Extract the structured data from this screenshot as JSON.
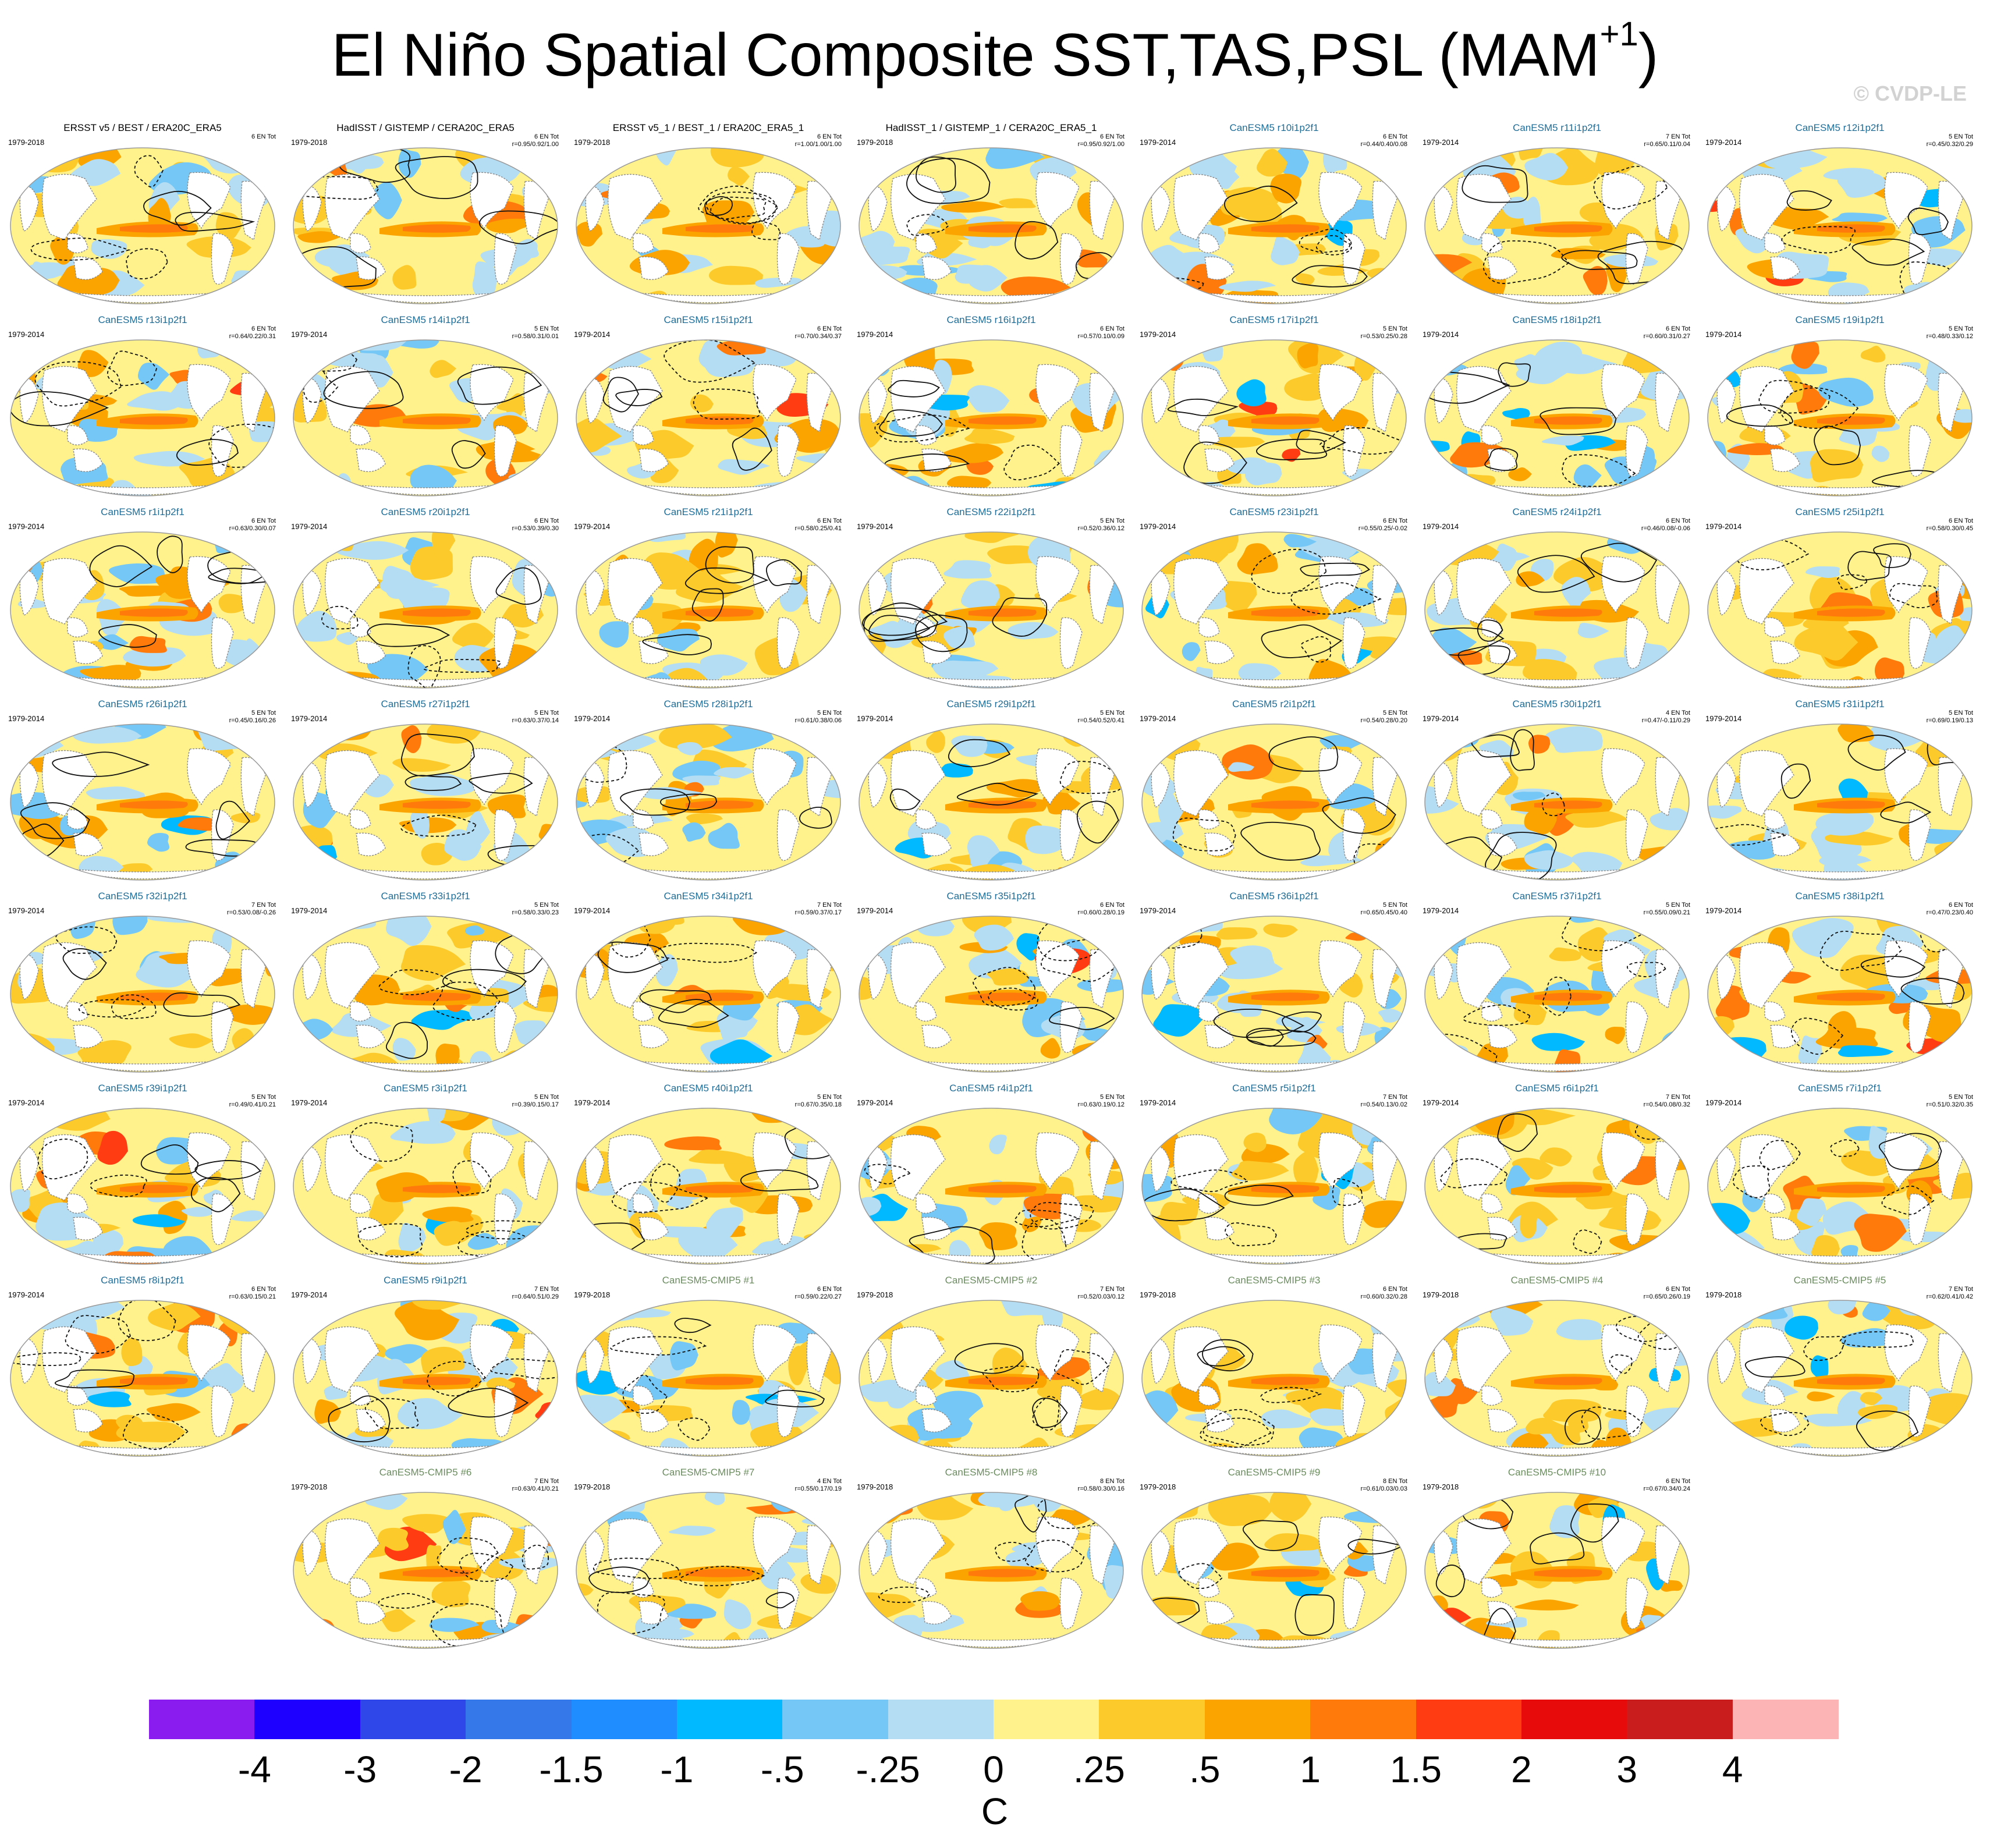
{
  "figure": {
    "title_main": "El Niño Spatial Composite SST,TAS,PSL (MAM",
    "title_sup": "+1",
    "title_close": ")",
    "watermark": "© CVDP-LE"
  },
  "colors": {
    "land_mask": "#ffffff",
    "coastline": "#8a8a8a",
    "contour": "#111111"
  },
  "legend": {
    "units": "C",
    "ticks": [
      "-4",
      "-3",
      "-2",
      "-1.5",
      "-1",
      "-.5",
      "-.25",
      "0",
      ".25",
      ".5",
      "1",
      "1.5",
      "2",
      "3",
      "4"
    ],
    "colors": [
      "#8b1cf0",
      "#1d00ff",
      "#2f47e8",
      "#3578ea",
      "#1f8cff",
      "#00b9fe",
      "#75c8f5",
      "#b4ddf4",
      "#fff28c",
      "#fccb2b",
      "#fba400",
      "#ff7a0a",
      "#ff3c12",
      "#e80b0b",
      "#c91d1d",
      "#fdb4b4"
    ]
  },
  "panels": [
    {
      "title": "ERSST v5 / BEST / ERA20C_ERA5",
      "kind": "obs",
      "years": "1979-2018",
      "count": "6 EN Tot",
      "stats": ""
    },
    {
      "title": "HadISST / GISTEMP / CERA20C_ERA5",
      "kind": "obs",
      "years": "1979-2018",
      "count": "6 EN Tot",
      "stats": "r=0.95/0.92/1.00"
    },
    {
      "title": "ERSST v5_1 / BEST_1 / ERA20C_ERA5_1",
      "kind": "obs",
      "years": "1979-2018",
      "count": "6 EN Tot",
      "stats": "r=1.00/1.00/1.00"
    },
    {
      "title": "HadISST_1 / GISTEMP_1 / CERA20C_ERA5_1",
      "kind": "obs",
      "years": "1979-2018",
      "count": "6 EN Tot",
      "stats": "r=0.95/0.92/1.00"
    },
    {
      "title": "CanESM5 r10i1p2f1",
      "kind": "model",
      "years": "1979-2014",
      "count": "6 EN Tot",
      "stats": "r=0.44/0.40/0.08"
    },
    {
      "title": "CanESM5 r11i1p2f1",
      "kind": "model",
      "years": "1979-2014",
      "count": "7 EN Tot",
      "stats": "r=0.65/0.11/0.04"
    },
    {
      "title": "CanESM5 r12i1p2f1",
      "kind": "model",
      "years": "1979-2014",
      "count": "5 EN Tot",
      "stats": "r=0.45/0.32/0.29"
    },
    {
      "title": "CanESM5 r13i1p2f1",
      "kind": "model",
      "years": "1979-2014",
      "count": "6 EN Tot",
      "stats": "r=0.64/0.22/0.31"
    },
    {
      "title": "CanESM5 r14i1p2f1",
      "kind": "model",
      "years": "1979-2014",
      "count": "5 EN Tot",
      "stats": "r=0.58/0.31/0.01"
    },
    {
      "title": "CanESM5 r15i1p2f1",
      "kind": "model",
      "years": "1979-2014",
      "count": "6 EN Tot",
      "stats": "r=0.70/0.34/0.37"
    },
    {
      "title": "CanESM5 r16i1p2f1",
      "kind": "model",
      "years": "1979-2014",
      "count": "6 EN Tot",
      "stats": "r=0.57/0.10/0.09"
    },
    {
      "title": "CanESM5 r17i1p2f1",
      "kind": "model",
      "years": "1979-2014",
      "count": "5 EN Tot",
      "stats": "r=0.53/0.25/0.28"
    },
    {
      "title": "CanESM5 r18i1p2f1",
      "kind": "model",
      "years": "1979-2014",
      "count": "6 EN Tot",
      "stats": "r=0.60/0.31/0.27"
    },
    {
      "title": "CanESM5 r19i1p2f1",
      "kind": "model",
      "years": "1979-2014",
      "count": "5 EN Tot",
      "stats": "r=0.48/0.33/0.12"
    },
    {
      "title": "CanESM5 r1i1p2f1",
      "kind": "model",
      "years": "1979-2014",
      "count": "6 EN Tot",
      "stats": "r=0.63/0.30/0.07"
    },
    {
      "title": "CanESM5 r20i1p2f1",
      "kind": "model",
      "years": "1979-2014",
      "count": "6 EN Tot",
      "stats": "r=0.53/0.39/0.30"
    },
    {
      "title": "CanESM5 r21i1p2f1",
      "kind": "model",
      "years": "1979-2014",
      "count": "6 EN Tot",
      "stats": "r=0.58/0.25/0.41"
    },
    {
      "title": "CanESM5 r22i1p2f1",
      "kind": "model",
      "years": "1979-2014",
      "count": "5 EN Tot",
      "stats": "r=0.52/0.36/0.12"
    },
    {
      "title": "CanESM5 r23i1p2f1",
      "kind": "model",
      "years": "1979-2014",
      "count": "6 EN Tot",
      "stats": "r=0.55/0.25/-0.02"
    },
    {
      "title": "CanESM5 r24i1p2f1",
      "kind": "model",
      "years": "1979-2014",
      "count": "6 EN Tot",
      "stats": "r=0.46/0.08/-0.06"
    },
    {
      "title": "CanESM5 r25i1p2f1",
      "kind": "model",
      "years": "1979-2014",
      "count": "6 EN Tot",
      "stats": "r=0.58/0.30/0.45"
    },
    {
      "title": "CanESM5 r26i1p2f1",
      "kind": "model",
      "years": "1979-2014",
      "count": "5 EN Tot",
      "stats": "r=0.45/0.16/0.26"
    },
    {
      "title": "CanESM5 r27i1p2f1",
      "kind": "model",
      "years": "1979-2014",
      "count": "5 EN Tot",
      "stats": "r=0.63/0.37/0.14"
    },
    {
      "title": "CanESM5 r28i1p2f1",
      "kind": "model",
      "years": "1979-2014",
      "count": "5 EN Tot",
      "stats": "r=0.61/0.38/0.06"
    },
    {
      "title": "CanESM5 r29i1p2f1",
      "kind": "model",
      "years": "1979-2014",
      "count": "5 EN Tot",
      "stats": "r=0.54/0.52/0.41"
    },
    {
      "title": "CanESM5 r2i1p2f1",
      "kind": "model",
      "years": "1979-2014",
      "count": "5 EN Tot",
      "stats": "r=0.54/0.28/0.20"
    },
    {
      "title": "CanESM5 r30i1p2f1",
      "kind": "model",
      "years": "1979-2014",
      "count": "4 EN Tot",
      "stats": "r=0.47/-0.11/0.29"
    },
    {
      "title": "CanESM5 r31i1p2f1",
      "kind": "model",
      "years": "1979-2014",
      "count": "5 EN Tot",
      "stats": "r=0.69/0.19/0.13"
    },
    {
      "title": "CanESM5 r32i1p2f1",
      "kind": "model",
      "years": "1979-2014",
      "count": "7 EN Tot",
      "stats": "r=0.53/0.08/-0.26"
    },
    {
      "title": "CanESM5 r33i1p2f1",
      "kind": "model",
      "years": "1979-2014",
      "count": "5 EN Tot",
      "stats": "r=0.58/0.33/0.23"
    },
    {
      "title": "CanESM5 r34i1p2f1",
      "kind": "model",
      "years": "1979-2014",
      "count": "7 EN Tot",
      "stats": "r=0.59/0.37/0.17"
    },
    {
      "title": "CanESM5 r35i1p2f1",
      "kind": "model",
      "years": "1979-2014",
      "count": "6 EN Tot",
      "stats": "r=0.60/0.28/0.19"
    },
    {
      "title": "CanESM5 r36i1p2f1",
      "kind": "model",
      "years": "1979-2014",
      "count": "5 EN Tot",
      "stats": "r=0.65/0.45/0.40"
    },
    {
      "title": "CanESM5 r37i1p2f1",
      "kind": "model",
      "years": "1979-2014",
      "count": "5 EN Tot",
      "stats": "r=0.55/0.09/0.21"
    },
    {
      "title": "CanESM5 r38i1p2f1",
      "kind": "model",
      "years": "1979-2014",
      "count": "6 EN Tot",
      "stats": "r=0.47/0.23/0.40"
    },
    {
      "title": "CanESM5 r39i1p2f1",
      "kind": "model",
      "years": "1979-2014",
      "count": "5 EN Tot",
      "stats": "r=0.49/0.41/0.21"
    },
    {
      "title": "CanESM5 r3i1p2f1",
      "kind": "model",
      "years": "1979-2014",
      "count": "5 EN Tot",
      "stats": "r=0.39/0.15/0.17"
    },
    {
      "title": "CanESM5 r40i1p2f1",
      "kind": "model",
      "years": "1979-2014",
      "count": "5 EN Tot",
      "stats": "r=0.67/0.35/0.18"
    },
    {
      "title": "CanESM5 r4i1p2f1",
      "kind": "model",
      "years": "1979-2014",
      "count": "5 EN Tot",
      "stats": "r=0.63/0.19/0.12"
    },
    {
      "title": "CanESM5 r5i1p2f1",
      "kind": "model",
      "years": "1979-2014",
      "count": "7 EN Tot",
      "stats": "r=0.54/0.13/0.02"
    },
    {
      "title": "CanESM5 r6i1p2f1",
      "kind": "model",
      "years": "1979-2014",
      "count": "7 EN Tot",
      "stats": "r=0.54/0.08/0.32"
    },
    {
      "title": "CanESM5 r7i1p2f1",
      "kind": "model",
      "years": "1979-2014",
      "count": "5 EN Tot",
      "stats": "r=0.51/0.32/0.35"
    },
    {
      "title": "CanESM5 r8i1p2f1",
      "kind": "model",
      "years": "1979-2014",
      "count": "6 EN Tot",
      "stats": "r=0.63/0.15/0.21"
    },
    {
      "title": "CanESM5 r9i1p2f1",
      "kind": "model",
      "years": "1979-2014",
      "count": "7 EN Tot",
      "stats": "r=0.64/0.51/0.29"
    },
    {
      "title": "CanESM5-CMIP5 #1",
      "kind": "cmip",
      "years": "1979-2018",
      "count": "6 EN Tot",
      "stats": "r=0.59/0.22/0.27"
    },
    {
      "title": "CanESM5-CMIP5 #2",
      "kind": "cmip",
      "years": "1979-2018",
      "count": "7 EN Tot",
      "stats": "r=0.52/0.03/0.12"
    },
    {
      "title": "CanESM5-CMIP5 #3",
      "kind": "cmip",
      "years": "1979-2018",
      "count": "6 EN Tot",
      "stats": "r=0.60/0.32/0.28"
    },
    {
      "title": "CanESM5-CMIP5 #4",
      "kind": "cmip",
      "years": "1979-2018",
      "count": "6 EN Tot",
      "stats": "r=0.65/0.26/0.19"
    },
    {
      "title": "CanESM5-CMIP5 #5",
      "kind": "cmip",
      "years": "1979-2018",
      "count": "7 EN Tot",
      "stats": "r=0.62/0.41/0.42"
    },
    {
      "title": "CanESM5-CMIP5 #6",
      "kind": "cmip",
      "years": "1979-2018",
      "count": "7 EN Tot",
      "stats": "r=0.63/0.41/0.21"
    },
    {
      "title": "CanESM5-CMIP5 #7",
      "kind": "cmip",
      "years": "1979-2018",
      "count": "4 EN Tot",
      "stats": "r=0.55/0.17/0.19"
    },
    {
      "title": "CanESM5-CMIP5 #8",
      "kind": "cmip",
      "years": "1979-2018",
      "count": "8 EN Tot",
      "stats": "r=0.58/0.30/0.16"
    },
    {
      "title": "CanESM5-CMIP5 #9",
      "kind": "cmip",
      "years": "1979-2018",
      "count": "8 EN Tot",
      "stats": "r=0.61/0.03/0.03"
    },
    {
      "title": "CanESM5-CMIP5 #10",
      "kind": "cmip",
      "years": "1979-2018",
      "count": "6 EN Tot",
      "stats": "r=0.67/0.34/0.24"
    }
  ]
}
